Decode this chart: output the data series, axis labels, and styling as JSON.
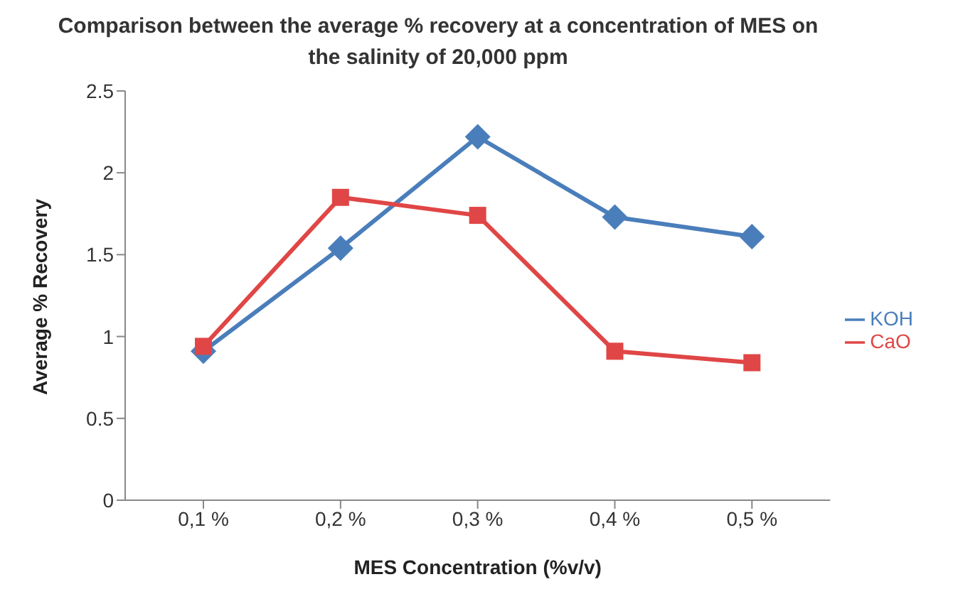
{
  "chart_data": {
    "type": "line",
    "title": "Comparison between the average % recovery at a concentration of MES on the salinity of 20,000 ppm",
    "xlabel": "MES Concentration (%v/v)",
    "ylabel": "Average % Recovery",
    "categories": [
      "0,1 %",
      "0,2 %",
      "0,3 %",
      "0,4 %",
      "0,5 %"
    ],
    "series": [
      {
        "name": "KOH",
        "color": "#4a7ebb",
        "marker": "diamond",
        "values": [
          0.91,
          1.54,
          2.22,
          1.73,
          1.61
        ]
      },
      {
        "name": "CaO",
        "color": "#e04646",
        "marker": "square",
        "values": [
          0.94,
          1.85,
          1.74,
          0.91,
          0.84
        ]
      }
    ],
    "ylim": [
      0,
      2.5
    ],
    "yticks": [
      0,
      0.5,
      1,
      1.5,
      2,
      2.5
    ],
    "grid": false,
    "legend": "right",
    "line_style": "solid"
  }
}
